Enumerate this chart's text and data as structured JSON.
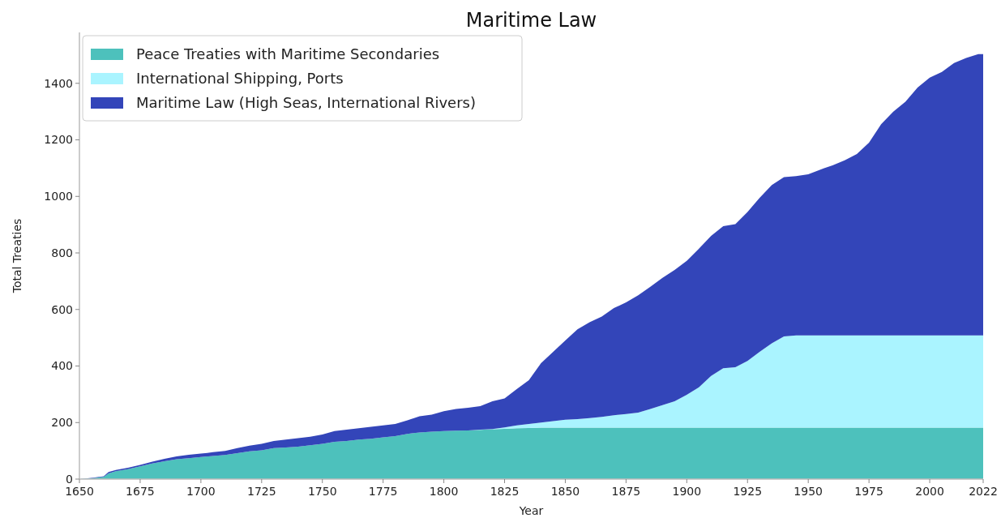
{
  "chart_data": {
    "type": "area",
    "title": "Maritime Law",
    "xlabel": "Year",
    "ylabel": "Total Treaties",
    "stacked": true,
    "legend": "top left",
    "grid": false,
    "xlim": [
      1650,
      2022
    ],
    "xticks": [
      1650,
      1675,
      1700,
      1725,
      1750,
      1775,
      1800,
      1825,
      1850,
      1875,
      1900,
      1925,
      1950,
      1975,
      2000,
      2022
    ],
    "ylim": [
      0,
      1580
    ],
    "yticks": [
      0,
      200,
      400,
      600,
      800,
      1000,
      1200,
      1400
    ],
    "x": [
      1650,
      1655,
      1660,
      1662,
      1665,
      1670,
      1675,
      1680,
      1685,
      1690,
      1695,
      1700,
      1705,
      1710,
      1715,
      1720,
      1725,
      1730,
      1735,
      1740,
      1745,
      1750,
      1755,
      1760,
      1765,
      1770,
      1775,
      1780,
      1785,
      1790,
      1795,
      1800,
      1805,
      1810,
      1815,
      1820,
      1825,
      1830,
      1835,
      1840,
      1845,
      1850,
      1855,
      1860,
      1865,
      1870,
      1875,
      1880,
      1885,
      1890,
      1895,
      1900,
      1905,
      1910,
      1915,
      1920,
      1925,
      1930,
      1935,
      1940,
      1945,
      1950,
      1955,
      1960,
      1965,
      1970,
      1975,
      1980,
      1985,
      1990,
      1995,
      2000,
      2005,
      2010,
      2015,
      2020,
      2022
    ],
    "series": [
      {
        "name": "Peace Treaties with Maritime Secondaries",
        "color": "#4dc1bc",
        "values": [
          0,
          3,
          8,
          20,
          28,
          35,
          45,
          55,
          63,
          70,
          74,
          78,
          82,
          85,
          92,
          98,
          102,
          110,
          112,
          115,
          120,
          125,
          132,
          135,
          140,
          143,
          148,
          152,
          160,
          165,
          168,
          170,
          171,
          172,
          174,
          176,
          178,
          180,
          181,
          182,
          182,
          182,
          182,
          182,
          182,
          182,
          182,
          182,
          182,
          182,
          182,
          182,
          182,
          182,
          182,
          182,
          182,
          182,
          182,
          182,
          182,
          182,
          182,
          182,
          182,
          182,
          182,
          182,
          182,
          182,
          182,
          182,
          182,
          182,
          182,
          182,
          182
        ]
      },
      {
        "name": "International Shipping, Ports",
        "color": "#aaf4ff",
        "values": [
          0,
          0,
          0,
          0,
          0,
          0,
          0,
          0,
          0,
          0,
          0,
          0,
          0,
          0,
          0,
          0,
          0,
          0,
          0,
          0,
          0,
          0,
          0,
          0,
          0,
          0,
          0,
          0,
          0,
          0,
          0,
          0,
          0,
          0,
          1,
          1,
          5,
          10,
          14,
          18,
          23,
          28,
          30,
          34,
          38,
          44,
          48,
          53,
          66,
          80,
          93,
          116,
          143,
          183,
          210,
          214,
          236,
          268,
          298,
          323,
          326,
          326,
          326,
          326,
          326,
          326,
          326,
          326,
          326,
          326,
          326,
          326,
          326,
          326,
          326,
          326,
          326
        ]
      },
      {
        "name": "Maritime Law (High Seas, International Rivers)",
        "color": "#3345b9",
        "values": [
          0,
          1,
          2,
          5,
          4,
          5,
          5,
          7,
          9,
          10,
          12,
          12,
          13,
          15,
          18,
          20,
          23,
          25,
          28,
          30,
          30,
          33,
          38,
          40,
          40,
          42,
          42,
          43,
          48,
          57,
          60,
          70,
          77,
          80,
          83,
          98,
          102,
          128,
          155,
          210,
          245,
          280,
          318,
          339,
          355,
          379,
          395,
          415,
          432,
          450,
          465,
          474,
          490,
          495,
          503,
          506,
          527,
          545,
          560,
          563,
          564,
          570,
          587,
          602,
          620,
          642,
          682,
          747,
          792,
          827,
          877,
          912,
          932,
          964,
          982,
          995,
          995
        ]
      }
    ]
  }
}
